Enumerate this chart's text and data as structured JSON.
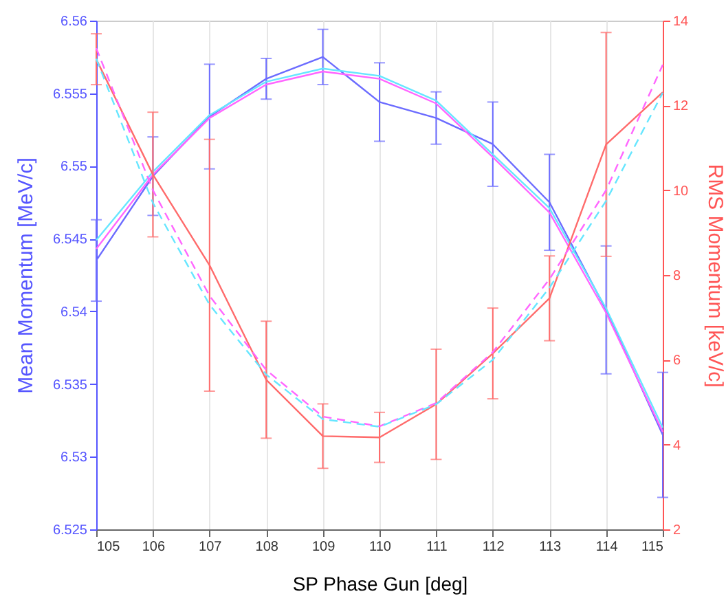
{
  "chart_data": {
    "type": "line",
    "xlabel": "SP Phase Gun [deg]",
    "ylabel": "Mean Momentum [MeV/c]",
    "y2label": "RMS Momentum [keV/c]",
    "x": [
      105,
      106,
      107,
      108,
      109,
      110,
      111,
      112,
      113,
      114,
      115
    ],
    "xlim": [
      105,
      115
    ],
    "xticks": [
      105,
      106,
      107,
      108,
      109,
      110,
      111,
      112,
      113,
      114,
      115
    ],
    "ylim": [
      6.525,
      6.56
    ],
    "yticks": [
      6.525,
      6.53,
      6.535,
      6.54,
      6.545,
      6.55,
      6.555,
      6.56
    ],
    "y2lim": [
      2,
      14
    ],
    "y2ticks": [
      2,
      4,
      6,
      8,
      10,
      12,
      14
    ],
    "grid": "x",
    "series": [
      {
        "color": "#6b6bff",
        "values": [
          6.5435,
          6.5493,
          6.5534,
          6.556,
          6.5575,
          6.5544,
          6.5533,
          6.5515,
          6.5475,
          6.5401,
          6.5315
        ],
        "errors": [
          0.0028,
          0.0027,
          0.0036,
          0.0014,
          0.0019,
          0.0027,
          0.0018,
          0.0029,
          0.0033,
          0.0044,
          0.0043
        ]
      },
      {
        "color": "#66e6ff",
        "values": [
          6.5449,
          6.5496,
          6.5535,
          6.5558,
          6.5567,
          6.5562,
          6.5545,
          6.5508,
          6.5471,
          6.5402,
          6.532
        ]
      },
      {
        "color": "#ff66ff",
        "values": [
          6.5443,
          6.5494,
          6.5533,
          6.5556,
          6.5565,
          6.556,
          6.5543,
          6.5506,
          6.5468,
          6.5399,
          6.5317
        ]
      },
      {
        "color": "#ff6b6b",
        "axis": "y2",
        "values": [
          13.09,
          10.37,
          8.23,
          5.53,
          4.2,
          4.17,
          4.95,
          6.15,
          7.45,
          11.08,
          12.31
        ],
        "errors": [
          0.6,
          1.47,
          2.97,
          1.38,
          0.76,
          0.59,
          1.3,
          1.07,
          1.0,
          2.64,
          null
        ]
      },
      {
        "color": "#ff66ff",
        "axis": "y2",
        "line_style": "dashed",
        "values": [
          13.35,
          10.0,
          7.51,
          5.76,
          4.66,
          4.43,
          4.98,
          6.18,
          7.9,
          10.0,
          12.96
        ]
      },
      {
        "color": "#66e6ff",
        "axis": "y2",
        "line_style": "dashed",
        "values": [
          13.1,
          9.7,
          7.3,
          5.65,
          4.6,
          4.42,
          4.95,
          6.0,
          7.7,
          9.75,
          12.3
        ]
      }
    ]
  }
}
